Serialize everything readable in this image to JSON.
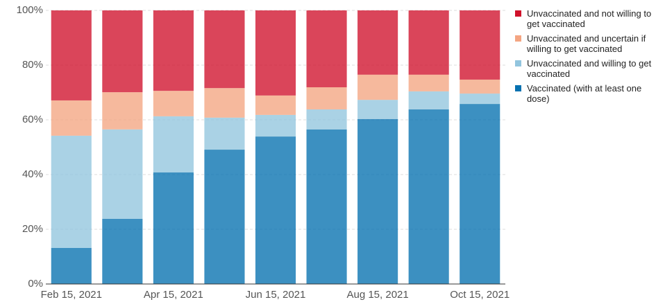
{
  "chart_data": {
    "type": "stacked_bar",
    "categories": [
      "Feb 15, 2021",
      null,
      "Apr 15, 2021",
      null,
      "Jun 15, 2021",
      null,
      "Aug 15, 2021",
      null,
      "Oct 15, 2021"
    ],
    "series": [
      {
        "name": "Unvaccinated and not willing to get vaccinated",
        "color": "#d0112b",
        "values": [
          32.9,
          29.9,
          29.4,
          28.4,
          31.1,
          28.1,
          23.5,
          23.5,
          25.3
        ]
      },
      {
        "name": "Unvaccinated and uncertain if willing to get vaccinated",
        "color": "#f4a582",
        "values": [
          12.9,
          13.6,
          9.3,
          10.8,
          7.1,
          8.1,
          9.2,
          6.1,
          5.1
        ]
      },
      {
        "name": "Unvaccinated and willing to get vaccinated",
        "color": "#92c5de",
        "values": [
          41.0,
          32.7,
          20.5,
          11.7,
          7.9,
          7.3,
          7.0,
          6.6,
          3.8
        ]
      },
      {
        "name": "Vaccinated (with at least one dose)",
        "color": "#0571b0",
        "values": [
          13.2,
          23.8,
          40.8,
          49.1,
          53.9,
          56.5,
          60.3,
          63.8,
          65.8
        ]
      }
    ],
    "ylim": [
      0,
      100
    ],
    "yticks": [
      {
        "value": 0,
        "label": "0%"
      },
      {
        "value": 20,
        "label": "20%"
      },
      {
        "value": 40,
        "label": "40%"
      },
      {
        "value": 60,
        "label": "60%"
      },
      {
        "value": 80,
        "label": "80%"
      },
      {
        "value": 100,
        "label": "100%"
      }
    ],
    "grid": true
  }
}
